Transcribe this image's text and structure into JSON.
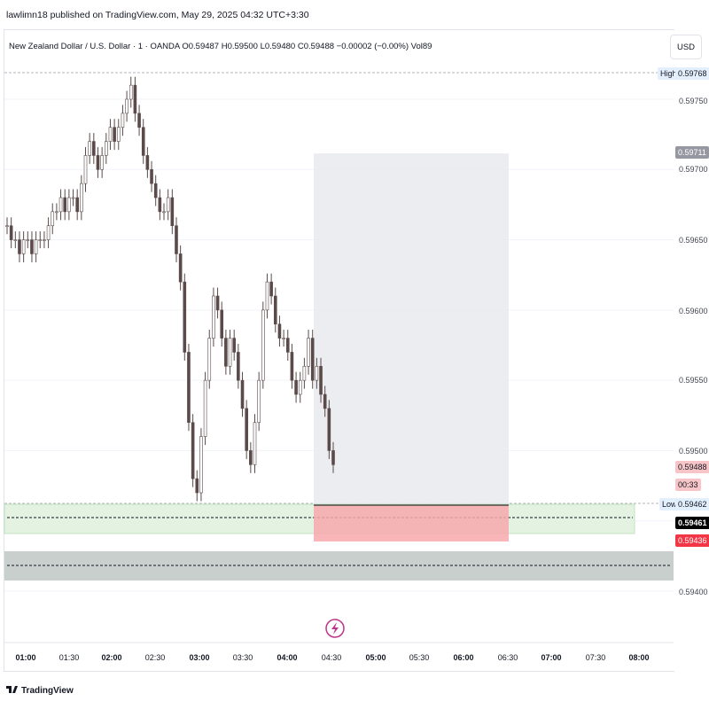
{
  "publisher": "lawlimn18 published on TradingView.com, May 29, 2025 04:32 UTC+3:30",
  "legend": {
    "symbol": "New Zealand Dollar / U.S. Dollar · 1 · OANDA",
    "open": "O0.59487",
    "high": "H0.59500",
    "low": "L0.59480",
    "close": "C0.59488",
    "change": "−0.00002 (−0.00%)",
    "volume": "Vol89"
  },
  "currency_button": "USD",
  "price_ticks": [
    "0.59750",
    "0.59700",
    "0.59650",
    "0.59600",
    "0.59550",
    "0.59500",
    "0.59400"
  ],
  "tags": {
    "high_label": "High",
    "high_value": "0.59768",
    "target_value": "0.59711",
    "current_value": "0.59488",
    "countdown": "00:33",
    "low_label": "Low",
    "low_value": "0.59462",
    "entry_value": "0.59461",
    "stop_value": "0.59436"
  },
  "time_ticks": [
    {
      "label": "01:00",
      "bold": true
    },
    {
      "label": "01:30",
      "bold": false
    },
    {
      "label": "02:00",
      "bold": true
    },
    {
      "label": "02:30",
      "bold": false
    },
    {
      "label": "03:00",
      "bold": true
    },
    {
      "label": "03:30",
      "bold": false
    },
    {
      "label": "04:00",
      "bold": true
    },
    {
      "label": "04:30",
      "bold": false
    },
    {
      "label": "05:00",
      "bold": true
    },
    {
      "label": "05:30",
      "bold": false
    },
    {
      "label": "06:00",
      "bold": true
    },
    {
      "label": "06:30",
      "bold": false
    },
    {
      "label": "07:00",
      "bold": true
    },
    {
      "label": "07:30",
      "bold": false
    },
    {
      "label": "08:00",
      "bold": true
    }
  ],
  "logo_text": "TradingView",
  "colors": {
    "candle": "#5a4a4a",
    "profit_zone": "#e8eaed",
    "loss_zone": "#f7a9ad",
    "support_zone": "#e3f2e1",
    "demand_zone": "#c9cfcc",
    "stop_tag": "#f23645",
    "current_tag": "#f7c5c8"
  },
  "chart_data": {
    "type": "candlestick",
    "ylim": [
      0.5938,
      0.5978
    ],
    "high": 0.59768,
    "low": 0.59462,
    "last": 0.59488,
    "position": {
      "entry": 0.59461,
      "target": 0.59711,
      "stop": 0.59436
    },
    "close_series": [
      0.5966,
      0.5965,
      0.5965,
      0.5964,
      0.5965,
      0.5965,
      0.5964,
      0.5965,
      0.5965,
      0.5965,
      0.5966,
      0.5967,
      0.5967,
      0.5968,
      0.5967,
      0.5968,
      0.5968,
      0.5967,
      0.5969,
      0.5971,
      0.5972,
      0.5971,
      0.597,
      0.5971,
      0.5972,
      0.5973,
      0.5972,
      0.5973,
      0.5974,
      0.5975,
      0.5976,
      0.5974,
      0.5973,
      0.5971,
      0.597,
      0.5969,
      0.5968,
      0.5967,
      0.5967,
      0.5968,
      0.5966,
      0.5964,
      0.5962,
      0.5957,
      0.5952,
      0.5948,
      0.5947,
      0.5951,
      0.5955,
      0.5958,
      0.5961,
      0.596,
      0.5958,
      0.5956,
      0.5958,
      0.5957,
      0.5955,
      0.5953,
      0.595,
      0.5949,
      0.5952,
      0.5955,
      0.596,
      0.5962,
      0.5961,
      0.5959,
      0.5958,
      0.5958,
      0.5957,
      0.5955,
      0.5954,
      0.5955,
      0.5956,
      0.5958,
      0.5955,
      0.5956,
      0.5954,
      0.5953,
      0.595,
      0.5949
    ]
  }
}
